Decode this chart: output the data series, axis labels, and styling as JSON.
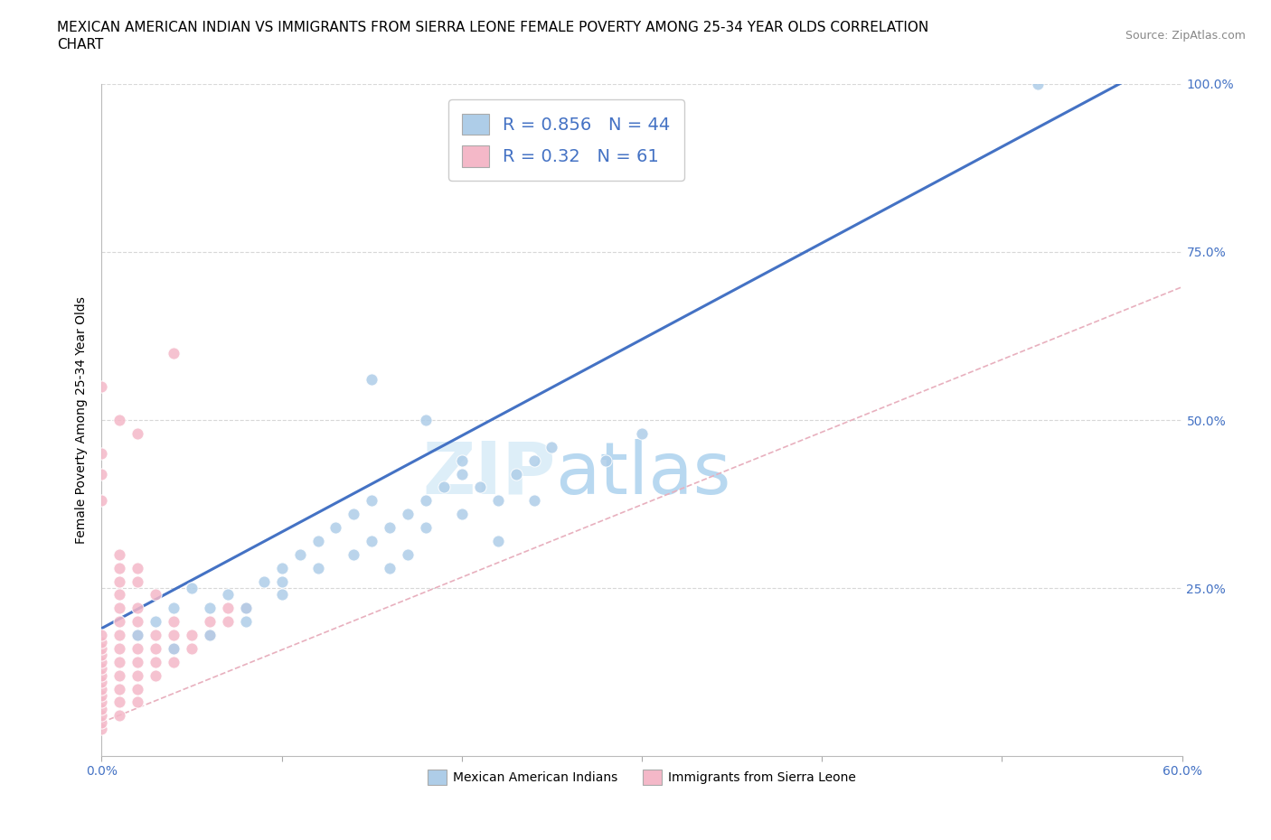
{
  "title_line1": "MEXICAN AMERICAN INDIAN VS IMMIGRANTS FROM SIERRA LEONE FEMALE POVERTY AMONG 25-34 YEAR OLDS CORRELATION",
  "title_line2": "CHART",
  "source_text": "Source: ZipAtlas.com",
  "ylabel": "Female Poverty Among 25-34 Year Olds",
  "xlim": [
    0,
    0.6
  ],
  "ylim": [
    0,
    1.0
  ],
  "blue_R": 0.856,
  "blue_N": 44,
  "pink_R": 0.32,
  "pink_N": 61,
  "blue_color": "#aecde8",
  "pink_color": "#f4b8c8",
  "blue_line_color": "#4472c4",
  "pink_line_color": "#e8a0b0",
  "watermark_ZIP": "ZIP",
  "watermark_atlas": "atlas",
  "watermark_color_ZIP": "#d8ecf8",
  "watermark_color_atlas": "#b8d8f0",
  "legend_label_blue": "Mexican American Indians",
  "legend_label_pink": "Immigrants from Sierra Leone",
  "blue_scatter_x": [
    0.02,
    0.03,
    0.04,
    0.05,
    0.06,
    0.07,
    0.08,
    0.09,
    0.1,
    0.11,
    0.12,
    0.13,
    0.14,
    0.15,
    0.16,
    0.17,
    0.18,
    0.19,
    0.2,
    0.21,
    0.22,
    0.23,
    0.24,
    0.25,
    0.14,
    0.15,
    0.16,
    0.17,
    0.18,
    0.2,
    0.22,
    0.24,
    0.1,
    0.12,
    0.08,
    0.06,
    0.04,
    0.28,
    0.3,
    0.2,
    0.18,
    0.15,
    0.52,
    0.1
  ],
  "blue_scatter_y": [
    0.18,
    0.2,
    0.22,
    0.25,
    0.22,
    0.24,
    0.22,
    0.26,
    0.28,
    0.3,
    0.32,
    0.34,
    0.36,
    0.38,
    0.34,
    0.36,
    0.38,
    0.4,
    0.42,
    0.4,
    0.38,
    0.42,
    0.44,
    0.46,
    0.3,
    0.32,
    0.28,
    0.3,
    0.34,
    0.36,
    0.32,
    0.38,
    0.24,
    0.28,
    0.2,
    0.18,
    0.16,
    0.44,
    0.48,
    0.44,
    0.5,
    0.56,
    1.0,
    0.26
  ],
  "pink_scatter_x": [
    0.0,
    0.0,
    0.0,
    0.0,
    0.0,
    0.0,
    0.0,
    0.0,
    0.0,
    0.0,
    0.0,
    0.0,
    0.0,
    0.0,
    0.0,
    0.01,
    0.01,
    0.01,
    0.01,
    0.01,
    0.01,
    0.01,
    0.01,
    0.01,
    0.01,
    0.01,
    0.02,
    0.02,
    0.02,
    0.02,
    0.02,
    0.02,
    0.02,
    0.02,
    0.03,
    0.03,
    0.03,
    0.03,
    0.04,
    0.04,
    0.04,
    0.05,
    0.05,
    0.06,
    0.06,
    0.07,
    0.07,
    0.08,
    0.04,
    0.02,
    0.01,
    0.0,
    0.0,
    0.0,
    0.01,
    0.02,
    0.03,
    0.04,
    0.02,
    0.01,
    0.0
  ],
  "pink_scatter_y": [
    0.04,
    0.05,
    0.06,
    0.07,
    0.08,
    0.09,
    0.1,
    0.11,
    0.12,
    0.13,
    0.14,
    0.15,
    0.16,
    0.17,
    0.18,
    0.06,
    0.08,
    0.1,
    0.12,
    0.14,
    0.16,
    0.18,
    0.2,
    0.22,
    0.24,
    0.26,
    0.08,
    0.1,
    0.12,
    0.14,
    0.16,
    0.18,
    0.2,
    0.22,
    0.12,
    0.14,
    0.16,
    0.18,
    0.14,
    0.16,
    0.18,
    0.16,
    0.18,
    0.18,
    0.2,
    0.2,
    0.22,
    0.22,
    0.6,
    0.48,
    0.5,
    0.55,
    0.45,
    0.42,
    0.3,
    0.28,
    0.24,
    0.2,
    0.26,
    0.28,
    0.38
  ],
  "blue_line_x": [
    0.0,
    0.6
  ],
  "blue_line_y": [
    0.08,
    1.18
  ],
  "pink_line_x": [
    0.0,
    0.6
  ],
  "pink_line_y": [
    0.1,
    0.8
  ],
  "title_fontsize": 11,
  "axis_label_fontsize": 10,
  "tick_fontsize": 10,
  "source_fontsize": 9,
  "background_color": "#ffffff",
  "grid_color": "#d8d8d8"
}
